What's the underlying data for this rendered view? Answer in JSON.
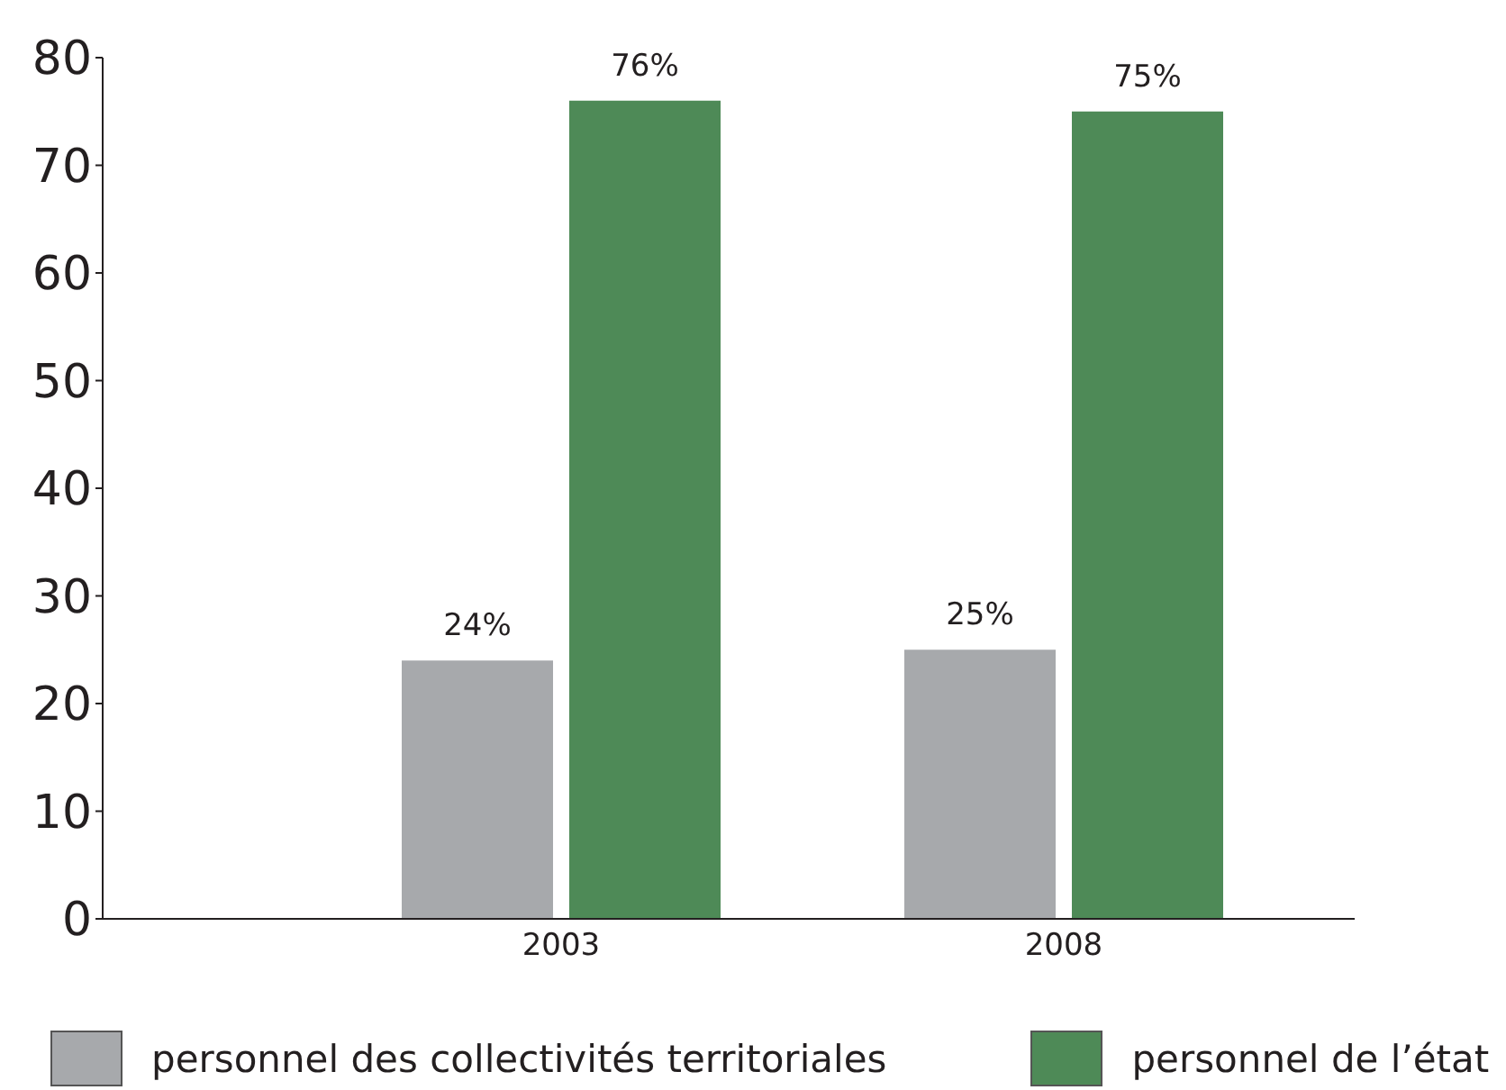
{
  "chart_data": {
    "type": "bar",
    "categories": [
      "2003",
      "2008"
    ],
    "series": [
      {
        "name": "personnel des collectivités territoriales",
        "color": "#a7a9ac",
        "values": [
          24,
          25
        ],
        "value_labels": [
          "24%",
          "25%"
        ]
      },
      {
        "name": "personnel de l’état",
        "color": "#4e8a57",
        "values": [
          76,
          75
        ],
        "value_labels": [
          "76%",
          "75%"
        ]
      }
    ],
    "ylim": [
      0,
      80
    ],
    "yticks": [
      0,
      10,
      20,
      30,
      40,
      50,
      60,
      70,
      80
    ],
    "grid": false,
    "legend": "bottom"
  }
}
